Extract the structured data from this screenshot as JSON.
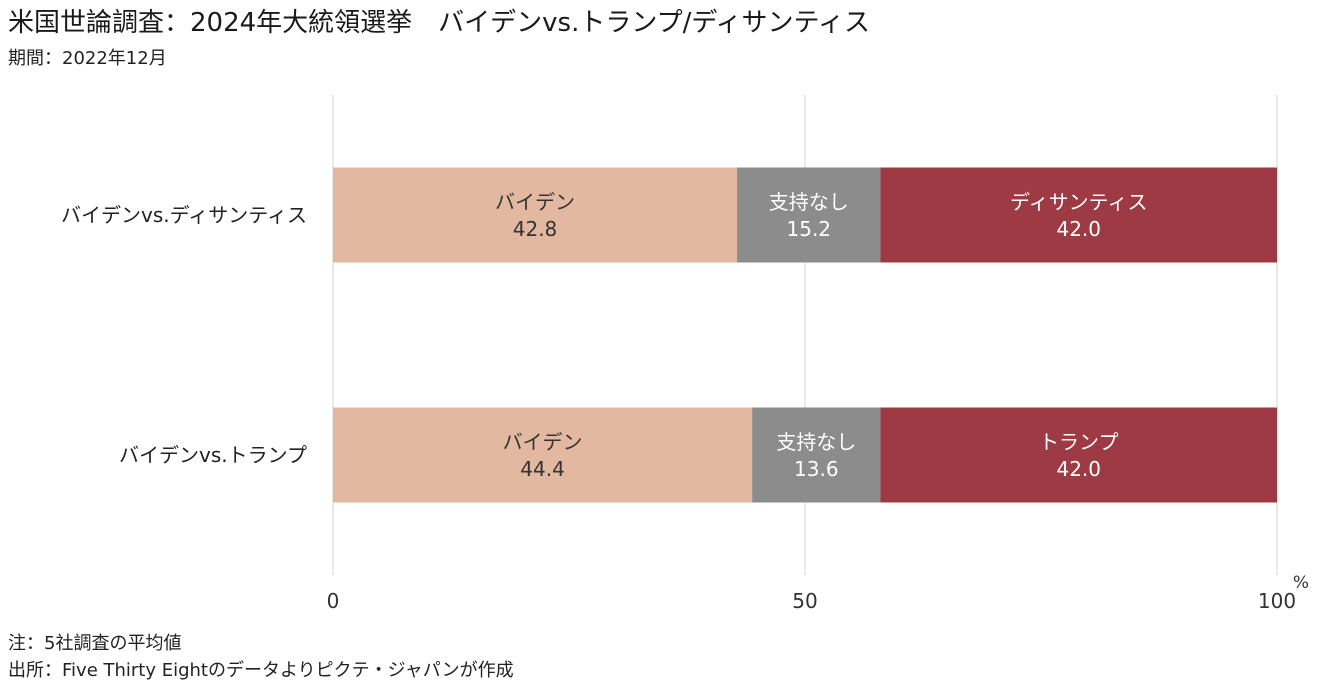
{
  "title": "米国世論調査：2024年大統領選挙　バイデンvs.トランプ/ディサンティス",
  "subtitle": "期間：2022年12月",
  "notes": [
    "注：5社調査の平均値",
    "出所：Five Thirty Eightのデータよりピクテ・ジャパンが作成"
  ],
  "chart_data": {
    "type": "bar",
    "orientation": "horizontal",
    "stacked": true,
    "categories": [
      "バイデンvs.ディサンティス",
      "バイデンvs.トランプ"
    ],
    "rows": [
      {
        "category": "バイデンvs.ディサンティス",
        "segments": [
          {
            "label": "バイデン",
            "value": 42.8,
            "value_text": "42.8",
            "color": "#e2b8a0"
          },
          {
            "label": "支持なし",
            "value": 15.2,
            "value_text": "15.2",
            "color": "#8c8c8c"
          },
          {
            "label": "ディサンティス",
            "value": 42.0,
            "value_text": "42.0",
            "color": "#9e3a43"
          }
        ]
      },
      {
        "category": "バイデンvs.トランプ",
        "segments": [
          {
            "label": "バイデン",
            "value": 44.4,
            "value_text": "44.4",
            "color": "#e2b8a0"
          },
          {
            "label": "支持なし",
            "value": 13.6,
            "value_text": "13.6",
            "color": "#8c8c8c"
          },
          {
            "label": "トランプ",
            "value": 42.0,
            "value_text": "42.0",
            "color": "#9e3a43"
          }
        ]
      }
    ],
    "xlim": [
      0,
      100
    ],
    "xticks": [
      0,
      50,
      100
    ],
    "xunit": "%",
    "grid": true
  }
}
